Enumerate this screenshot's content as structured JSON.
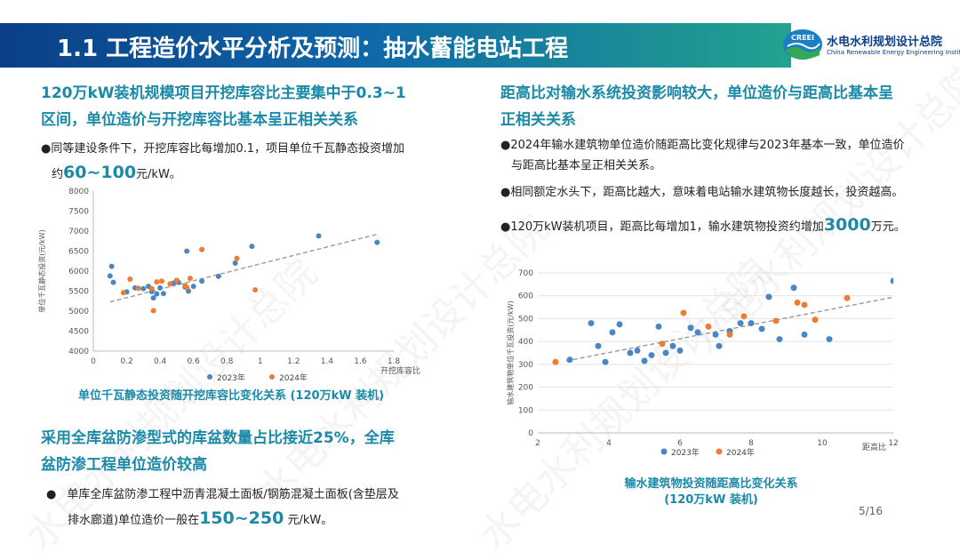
{
  "header": {
    "title": "1.1 工程造价水平分析及预测：抽水蓄能电站工程"
  },
  "logo": {
    "abbr": "CREEI",
    "name_cn": "水电水利规划设计总院",
    "name_en": "China Renewable Energy Engineering Institute"
  },
  "watermark": {
    "text": "水电水利规划设计总院"
  },
  "left": {
    "heading1_line1": "120万kW装机规模项目开挖库容比主要集中于0.3~1",
    "heading1_line2": "区间，单位造价与开挖库容比基本呈正相关关系",
    "bullet1_pre": "同等建设条件下，开挖库容比每增加0.1，项目单位千瓦静态投资增加",
    "bullet1_pre2": "约",
    "bullet1_big": "60~100",
    "bullet1_post": "元/kW。",
    "chart_caption": "单位千瓦静态投资随开挖库容比变化关系    (120万kW 装机)",
    "heading2_line1": "采用全库盆防渗型式的库盆数量占比接近25%，全库",
    "heading2_line2": "盆防渗工程单位造价较高",
    "bullet2_line1": "单库全库盆防渗工程中沥青混凝土面板/钢筋混凝土面板(含垫层及",
    "bullet2_pre2": "排水廊道)单位造价一般在",
    "bullet2_big": "150~250",
    "bullet2_post": " 元/kW。"
  },
  "right": {
    "heading1_line1": "距高比对输水系统投资影响较大，单位造价与距高比基本呈",
    "heading1_line2": "正相关关系",
    "bullet1_line1": "2024年输水建筑物单位造价随距高比变化规律与2023年基本一致，单位造价",
    "bullet1_line2": "与距高比基本呈正相关关系。",
    "bullet2": "相同额定水头下，距高比越大，意味着电站输水建筑物长度越长，投资越高。",
    "bullet3_pre": "120万kW装机项目，距高比每增加1，输水建筑物投资约增加",
    "bullet3_big": "3000",
    "bullet3_post": "万元。",
    "chart_caption_line1": "输水建筑物投资随距高比变化关系",
    "chart_caption_line2": "(120万kW 装机)"
  },
  "page": {
    "number": "5/16"
  },
  "colors": {
    "series_2023": "#4a86c5",
    "series_2024": "#ec7d31",
    "heading": "#1a8aa8",
    "trend": "#999999"
  },
  "chart_data": [
    {
      "type": "scatter",
      "title": "",
      "xlabel": "开挖库容比",
      "ylabel": "单位千瓦静态投资(元/kW)",
      "xlim": [
        0,
        1.8
      ],
      "ylim": [
        4000,
        8000
      ],
      "xticks": [
        "0",
        "0.2",
        "0.4",
        "0.6",
        "0.8",
        "1",
        "1.2",
        "1.4",
        "1.6",
        "1.8"
      ],
      "yticks": [
        "4000",
        "4500",
        "5000",
        "5500",
        "6000",
        "6500",
        "7000",
        "7500",
        "8000"
      ],
      "legend_position": "bottom",
      "trendline": {
        "x": [
          0.1,
          1.7
        ],
        "y": [
          5230,
          6920
        ]
      },
      "series": [
        {
          "name": "2023年",
          "points": [
            [
              0.1,
              5880
            ],
            [
              0.11,
              6120
            ],
            [
              0.12,
              5720
            ],
            [
              0.2,
              5480
            ],
            [
              0.25,
              5580
            ],
            [
              0.3,
              5560
            ],
            [
              0.33,
              5620
            ],
            [
              0.35,
              5490
            ],
            [
              0.36,
              5330
            ],
            [
              0.38,
              5430
            ],
            [
              0.4,
              5580
            ],
            [
              0.42,
              5440
            ],
            [
              0.48,
              5700
            ],
            [
              0.51,
              5720
            ],
            [
              0.55,
              5600
            ],
            [
              0.56,
              6500
            ],
            [
              0.57,
              5500
            ],
            [
              0.6,
              5620
            ],
            [
              0.65,
              5750
            ],
            [
              0.75,
              5870
            ],
            [
              0.85,
              6200
            ],
            [
              0.95,
              6620
            ],
            [
              1.35,
              6880
            ],
            [
              1.7,
              6720
            ]
          ]
        },
        {
          "name": "2024年",
          "points": [
            [
              0.18,
              5460
            ],
            [
              0.22,
              5800
            ],
            [
              0.27,
              5570
            ],
            [
              0.35,
              5560
            ],
            [
              0.36,
              5010
            ],
            [
              0.38,
              5730
            ],
            [
              0.41,
              5750
            ],
            [
              0.46,
              5680
            ],
            [
              0.5,
              5770
            ],
            [
              0.55,
              5640
            ],
            [
              0.56,
              5590
            ],
            [
              0.58,
              5820
            ],
            [
              0.65,
              6540
            ],
            [
              0.86,
              6320
            ],
            [
              0.97,
              5530
            ]
          ]
        }
      ]
    },
    {
      "type": "scatter",
      "title": "",
      "xlabel": "距高比",
      "ylabel": "输水建筑物单位千瓦投资(元/kW)",
      "xlim": [
        2,
        12
      ],
      "ylim": [
        0,
        700
      ],
      "xticks": [
        "2",
        "4",
        "6",
        "8",
        "10",
        "12"
      ],
      "yticks": [
        "0",
        "100",
        "200",
        "300",
        "400",
        "500",
        "600",
        "700"
      ],
      "legend_position": "bottom",
      "trendline": {
        "x": [
          2.8,
          12.2
        ],
        "y": [
          315,
          600
        ]
      },
      "series": [
        {
          "name": "2023年",
          "points": [
            [
              2.9,
              320
            ],
            [
              3.5,
              480
            ],
            [
              3.7,
              380
            ],
            [
              3.9,
              310
            ],
            [
              4.1,
              440
            ],
            [
              4.3,
              475
            ],
            [
              4.6,
              350
            ],
            [
              4.8,
              360
            ],
            [
              5.0,
              315
            ],
            [
              5.2,
              340
            ],
            [
              5.4,
              465
            ],
            [
              5.6,
              350
            ],
            [
              5.8,
              380
            ],
            [
              6.0,
              360
            ],
            [
              6.3,
              460
            ],
            [
              6.5,
              440
            ],
            [
              7.0,
              430
            ],
            [
              7.1,
              380
            ],
            [
              7.4,
              445
            ],
            [
              7.7,
              480
            ],
            [
              8.0,
              480
            ],
            [
              8.3,
              455
            ],
            [
              8.5,
              595
            ],
            [
              8.8,
              410
            ],
            [
              9.2,
              635
            ],
            [
              9.5,
              430
            ],
            [
              10.2,
              410
            ],
            [
              12.0,
              665
            ]
          ]
        },
        {
          "name": "2024年",
          "points": [
            [
              2.5,
              310
            ],
            [
              5.5,
              390
            ],
            [
              6.1,
              525
            ],
            [
              6.8,
              465
            ],
            [
              7.4,
              430
            ],
            [
              7.8,
              510
            ],
            [
              8.7,
              490
            ],
            [
              9.3,
              570
            ],
            [
              9.5,
              560
            ],
            [
              9.8,
              495
            ],
            [
              10.7,
              590
            ]
          ]
        }
      ]
    }
  ]
}
